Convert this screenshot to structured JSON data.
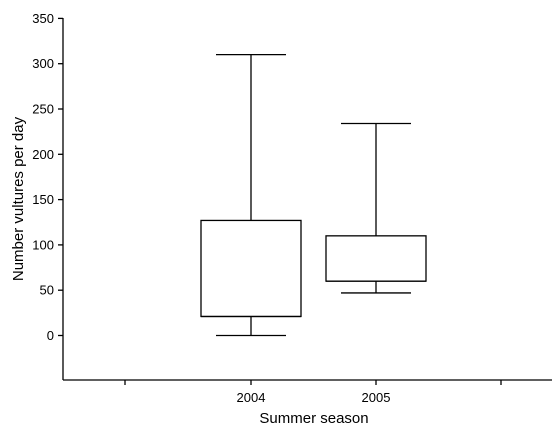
{
  "chart_data": {
    "type": "boxplot",
    "title": "",
    "xlabel": "Summer season",
    "ylabel": "Number vultures per day",
    "categories": [
      "2004",
      "2005"
    ],
    "ylim": [
      -50,
      350
    ],
    "yticks": [
      0,
      50,
      100,
      150,
      200,
      250,
      300,
      350
    ],
    "grid": false,
    "boxes": [
      {
        "category": "2004",
        "min": 0,
        "q1": 21,
        "median": 21,
        "q3": 127,
        "max": 310
      },
      {
        "category": "2005",
        "min": 47,
        "q1": 60,
        "median": 60,
        "q3": 110,
        "max": 234
      }
    ]
  }
}
